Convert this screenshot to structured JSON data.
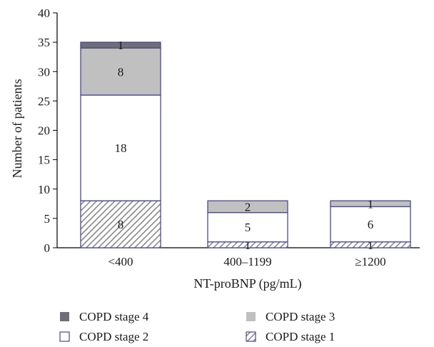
{
  "chart_data": {
    "type": "bar",
    "stacked": true,
    "xlabel": "NT-proBNP (pg/mL)",
    "ylabel": "Number of patients",
    "ylim": [
      0,
      40
    ],
    "yticks": [
      0,
      5,
      10,
      15,
      20,
      25,
      30,
      35,
      40
    ],
    "categories": [
      "<400",
      "400–1199",
      "≥1200"
    ],
    "series": [
      {
        "name": "COPD stage 1",
        "values": [
          8,
          1,
          1
        ],
        "fill": "hatch",
        "color": "#8a8a8a"
      },
      {
        "name": "COPD stage 2",
        "values": [
          18,
          5,
          6
        ],
        "fill": "#ffffff",
        "color": "#ffffff"
      },
      {
        "name": "COPD stage 3",
        "values": [
          8,
          2,
          1
        ],
        "fill": "#c0c0c0",
        "color": "#c0c0c0"
      },
      {
        "name": "COPD stage 4",
        "values": [
          1,
          0,
          0
        ],
        "fill": "#6e6e78",
        "color": "#6e6e78"
      }
    ],
    "bar_border_color": "#4a4a8a",
    "grid": false,
    "legend_position": "bottom",
    "legend_order": [
      "COPD stage 4",
      "COPD stage 2",
      "COPD stage 3",
      "COPD stage 1"
    ]
  }
}
